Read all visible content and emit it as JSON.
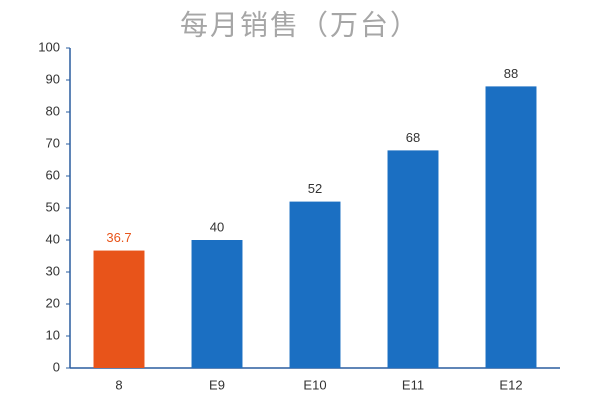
{
  "chart_data": {
    "type": "bar",
    "title": "每月销售（万台）",
    "categories": [
      "8",
      "E9",
      "E10",
      "E11",
      "E12"
    ],
    "values": [
      36.7,
      40,
      52,
      68,
      88
    ],
    "colors": [
      "#e8541a",
      "#1b6fc2",
      "#1b6fc2",
      "#1b6fc2",
      "#1b6fc2"
    ],
    "value_label_colors": [
      "#e8541a",
      "#333333",
      "#333333",
      "#333333",
      "#333333"
    ],
    "ylim": [
      0,
      100
    ],
    "yticks": [
      0,
      10,
      20,
      30,
      40,
      50,
      60,
      70,
      80,
      90,
      100
    ],
    "grid": false
  }
}
